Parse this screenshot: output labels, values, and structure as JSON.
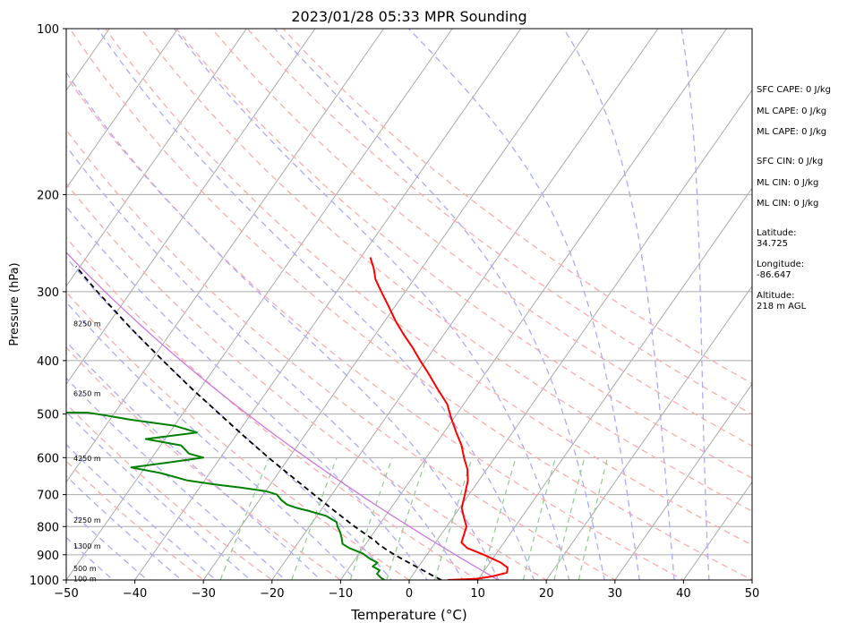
{
  "chart_data": {
    "type": "line",
    "title": "2023/01/28 05:33 MPR Sounding",
    "xlabel": "Temperature (°C)",
    "ylabel": "Pressure (hPa)",
    "xlim": [
      -50,
      50
    ],
    "ylim": [
      1000,
      100
    ],
    "y_scale": "log",
    "grid": true,
    "x_ticks": [
      -50,
      -40,
      -30,
      -20,
      -10,
      0,
      10,
      20,
      30,
      40,
      50
    ],
    "x_tick_labels": [
      "−50",
      "−40",
      "−30",
      "−20",
      "−10",
      "0",
      "10",
      "20",
      "30",
      "40",
      "50"
    ],
    "y_ticks": [
      1000,
      900,
      800,
      700,
      600,
      500,
      400,
      300,
      200,
      100
    ],
    "y_tick_labels": [
      "1000",
      "900",
      "800",
      "700",
      "600",
      "500",
      "400",
      "300",
      "200",
      "100"
    ],
    "height_labels": [
      {
        "text": "100 m",
        "p": 995
      },
      {
        "text": "500 m",
        "p": 952
      },
      {
        "text": "1300 m",
        "p": 868
      },
      {
        "text": "2250 m",
        "p": 778
      },
      {
        "text": "4250 m",
        "p": 602
      },
      {
        "text": "6250 m",
        "p": 459
      },
      {
        "text": "8250 m",
        "p": 343
      }
    ],
    "series": [
      {
        "role": "temperature",
        "color": "#ff0000",
        "points": [
          {
            "p": 1000,
            "t": 5.6
          },
          {
            "p": 995,
            "t": 9.6
          },
          {
            "p": 985,
            "t": 11.7
          },
          {
            "p": 970,
            "t": 13.5
          },
          {
            "p": 950,
            "t": 13.1
          },
          {
            "p": 930,
            "t": 11.6
          },
          {
            "p": 900,
            "t": 8.3
          },
          {
            "p": 875,
            "t": 5.2
          },
          {
            "p": 855,
            "t": 3.8
          },
          {
            "p": 830,
            "t": 3.4
          },
          {
            "p": 800,
            "t": 2.9
          },
          {
            "p": 770,
            "t": 1.6
          },
          {
            "p": 740,
            "t": 0.3
          },
          {
            "p": 700,
            "t": -0.6
          },
          {
            "p": 660,
            "t": -1.6
          },
          {
            "p": 630,
            "t": -2.8
          },
          {
            "p": 600,
            "t": -4.5
          },
          {
            "p": 570,
            "t": -6.1
          },
          {
            "p": 540,
            "t": -8.2
          },
          {
            "p": 510,
            "t": -10.3
          },
          {
            "p": 480,
            "t": -12.4
          },
          {
            "p": 450,
            "t": -15.4
          },
          {
            "p": 420,
            "t": -18.5
          },
          {
            "p": 400,
            "t": -20.8
          },
          {
            "p": 380,
            "t": -23.1
          },
          {
            "p": 360,
            "t": -25.7
          },
          {
            "p": 340,
            "t": -28.3
          },
          {
            "p": 320,
            "t": -30.8
          },
          {
            "p": 300,
            "t": -33.5
          },
          {
            "p": 285,
            "t": -35.6
          },
          {
            "p": 272,
            "t": -37.0
          },
          {
            "p": 260,
            "t": -38.6
          }
        ]
      },
      {
        "role": "dewpoint",
        "color": "#008000",
        "points": [
          {
            "p": 1000,
            "t": -3.6
          },
          {
            "p": 990,
            "t": -4.4
          },
          {
            "p": 975,
            "t": -5.3
          },
          {
            "p": 960,
            "t": -5.3
          },
          {
            "p": 945,
            "t": -6.7
          },
          {
            "p": 930,
            "t": -6.4
          },
          {
            "p": 915,
            "t": -7.9
          },
          {
            "p": 895,
            "t": -9.5
          },
          {
            "p": 875,
            "t": -12.0
          },
          {
            "p": 860,
            "t": -13.4
          },
          {
            "p": 840,
            "t": -14.1
          },
          {
            "p": 820,
            "t": -14.9
          },
          {
            "p": 800,
            "t": -15.9
          },
          {
            "p": 785,
            "t": -16.5
          },
          {
            "p": 765,
            "t": -18.7
          },
          {
            "p": 750,
            "t": -21.6
          },
          {
            "p": 740,
            "t": -23.8
          },
          {
            "p": 730,
            "t": -25.5
          },
          {
            "p": 715,
            "t": -26.9
          },
          {
            "p": 700,
            "t": -28.0
          },
          {
            "p": 690,
            "t": -30.0
          },
          {
            "p": 680,
            "t": -34.0
          },
          {
            "p": 670,
            "t": -38.5
          },
          {
            "p": 660,
            "t": -42.5
          },
          {
            "p": 640,
            "t": -47.1
          },
          {
            "p": 625,
            "t": -52.0
          },
          {
            "p": 612,
            "t": -47.0
          },
          {
            "p": 600,
            "t": -42.5
          },
          {
            "p": 590,
            "t": -45.0
          },
          {
            "p": 570,
            "t": -47.0
          },
          {
            "p": 555,
            "t": -52.8
          },
          {
            "p": 540,
            "t": -46.0
          },
          {
            "p": 525,
            "t": -50.0
          },
          {
            "p": 512,
            "t": -57.0
          },
          {
            "p": 503,
            "t": -61.0
          },
          {
            "p": 497,
            "t": -64.0
          },
          {
            "p": 496,
            "t": -80.0
          }
        ]
      },
      {
        "role": "parcel",
        "color": "#000000",
        "dashed": true,
        "points": [
          {
            "p": 1000,
            "t": 4.7
          },
          {
            "p": 980,
            "t": 2.8
          },
          {
            "p": 960,
            "t": 1.0
          },
          {
            "p": 940,
            "t": -0.9
          },
          {
            "p": 920,
            "t": -2.8
          },
          {
            "p": 900,
            "t": -4.7
          },
          {
            "p": 880,
            "t": -6.5
          },
          {
            "p": 860,
            "t": -8.2
          },
          {
            "p": 850,
            "t": -8.9
          },
          {
            "p": 800,
            "t": -13.4
          },
          {
            "p": 750,
            "t": -17.9
          },
          {
            "p": 700,
            "t": -22.6
          },
          {
            "p": 650,
            "t": -27.6
          },
          {
            "p": 600,
            "t": -33.0
          },
          {
            "p": 550,
            "t": -38.6
          },
          {
            "p": 500,
            "t": -44.6
          },
          {
            "p": 450,
            "t": -51.2
          },
          {
            "p": 400,
            "t": -58.3
          },
          {
            "p": 350,
            "t": -66.2
          },
          {
            "p": 300,
            "t": -74.9
          },
          {
            "p": 270,
            "t": -80.6
          }
        ]
      }
    ],
    "overlays": {
      "isotherms": {
        "color": "#aaaaaa",
        "from": -160,
        "to": 50,
        "step": 10
      },
      "dry_adiabats": {
        "color": "#ffaaaa",
        "dashed": true
      },
      "moist_adiabats": {
        "color": "#aaaaff",
        "dashed": true
      },
      "mixing_ratio_lines": {
        "color": "#99cc99",
        "dashed": true
      },
      "reference_line": {
        "color": "#cc77dd"
      }
    }
  },
  "stats": {
    "sfc_cape": "SFC CAPE: 0 J/kg",
    "ml_cape_1": "ML CAPE: 0 J/kg",
    "ml_cape_2": "ML CAPE: 0 J/kg",
    "sfc_cin": "SFC CIN: 0 J/kg",
    "ml_cin_1": "ML CIN: 0 J/kg",
    "ml_cin_2": "ML CIN: 0 J/kg",
    "latitude": "Latitude:\n34.725",
    "longitude": "Longitude:\n-86.647",
    "altitude": "Altitude:\n218 m AGL"
  }
}
